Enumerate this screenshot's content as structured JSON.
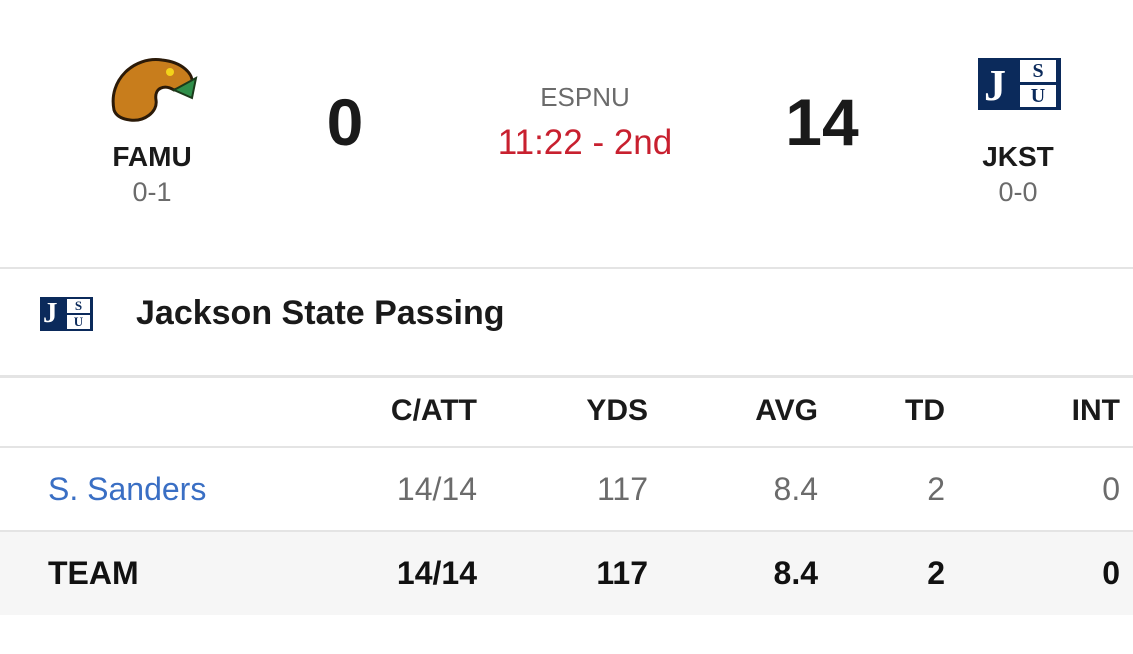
{
  "game": {
    "home": {
      "abbr": "FAMU",
      "record": "0-1",
      "score": 0
    },
    "away": {
      "abbr": "JKST",
      "record": "0-0",
      "score": 14,
      "logo_letters": [
        "J",
        "S",
        "U"
      ]
    },
    "network": "ESPNU",
    "clock": "11:22 - 2nd"
  },
  "section": {
    "title": "Jackson State Passing"
  },
  "table": {
    "columns": [
      "C/ATT",
      "YDS",
      "AVG",
      "TD",
      "INT"
    ],
    "rows": [
      {
        "name": "S. Sanders",
        "cells": [
          "14/14",
          117,
          8.4,
          2,
          0
        ]
      },
      {
        "name": "TEAM",
        "cells": [
          "14/14",
          117,
          8.4,
          2,
          0
        ]
      }
    ]
  }
}
